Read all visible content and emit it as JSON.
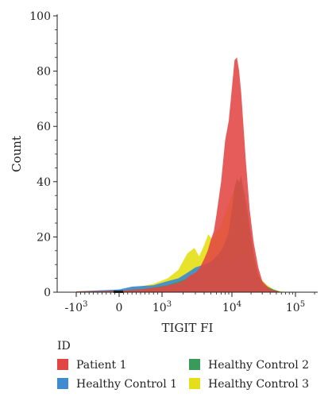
{
  "chart_data": {
    "type": "area",
    "xlabel": "TIGIT FI",
    "ylabel": "Count",
    "x_scale": "biexponential",
    "x_ticks": [
      {
        "value": -1000,
        "label": "-10",
        "exp": "3"
      },
      {
        "value": 0,
        "label": "0",
        "exp": ""
      },
      {
        "value": 1000,
        "label": "10",
        "exp": "3"
      },
      {
        "value": 10000,
        "label": "10",
        "exp": "4"
      },
      {
        "value": 100000,
        "label": "10",
        "exp": "5"
      }
    ],
    "y_ticks": [
      0,
      20,
      40,
      60,
      80,
      100
    ],
    "ylim": [
      0,
      100
    ],
    "legend": {
      "title": "ID",
      "position": "bottom"
    },
    "series": [
      {
        "name": "Healthy Control 3",
        "color": "#e5df1a",
        "points": [
          [
            -1000,
            0.3
          ],
          [
            0,
            0.6
          ],
          [
            300,
            1.5
          ],
          [
            800,
            3
          ],
          [
            1200,
            5
          ],
          [
            1700,
            8
          ],
          [
            2300,
            14
          ],
          [
            2900,
            16
          ],
          [
            3400,
            13
          ],
          [
            4000,
            17
          ],
          [
            4600,
            21
          ],
          [
            5200,
            19
          ],
          [
            6000,
            22
          ],
          [
            7000,
            24
          ],
          [
            8000,
            29
          ],
          [
            9000,
            32
          ],
          [
            10000,
            35
          ],
          [
            11000,
            37
          ],
          [
            12500,
            40
          ],
          [
            14000,
            37
          ],
          [
            16000,
            31
          ],
          [
            19000,
            21
          ],
          [
            23000,
            10
          ],
          [
            28000,
            5
          ],
          [
            34000,
            3
          ],
          [
            45000,
            1
          ],
          [
            60000,
            0.2
          ],
          [
            100000,
            0
          ],
          [
            200000,
            0
          ]
        ]
      },
      {
        "name": "Healthy Control 1",
        "color": "#3e8bd0",
        "points": [
          [
            -1000,
            0.3
          ],
          [
            0,
            1
          ],
          [
            300,
            2
          ],
          [
            800,
            2.5
          ],
          [
            1200,
            4
          ],
          [
            1700,
            5
          ],
          [
            2300,
            7
          ],
          [
            3000,
            9
          ],
          [
            4000,
            10
          ],
          [
            5000,
            11
          ],
          [
            6000,
            11
          ],
          [
            7000,
            11
          ],
          [
            8000,
            12
          ],
          [
            10000,
            12
          ],
          [
            12000,
            13
          ],
          [
            14000,
            14
          ],
          [
            16000,
            13
          ],
          [
            19000,
            10
          ],
          [
            23000,
            6
          ],
          [
            28000,
            3
          ],
          [
            35000,
            1.5
          ],
          [
            45000,
            0.5
          ],
          [
            60000,
            0
          ],
          [
            200000,
            0
          ]
        ]
      },
      {
        "name": "Healthy Control 2",
        "color": "#3a9a5b",
        "points": [
          [
            -1000,
            0.2
          ],
          [
            0,
            0.5
          ],
          [
            500,
            1
          ],
          [
            1200,
            2.5
          ],
          [
            2300,
            5
          ],
          [
            3000,
            7
          ],
          [
            4000,
            9
          ],
          [
            5000,
            11
          ],
          [
            6000,
            13
          ],
          [
            7000,
            15
          ],
          [
            8000,
            18
          ],
          [
            9000,
            22
          ],
          [
            10000,
            30
          ],
          [
            11000,
            38
          ],
          [
            12000,
            41
          ],
          [
            13000,
            40
          ],
          [
            14000,
            42
          ],
          [
            15000,
            38
          ],
          [
            17000,
            32
          ],
          [
            19000,
            24
          ],
          [
            22000,
            14
          ],
          [
            26000,
            6
          ],
          [
            32000,
            2.5
          ],
          [
            45000,
            1
          ],
          [
            60000,
            0
          ],
          [
            200000,
            0
          ]
        ]
      },
      {
        "name": "Patient 1",
        "color": "#e24644",
        "points": [
          [
            -1000,
            0.3
          ],
          [
            0,
            0.5
          ],
          [
            500,
            1
          ],
          [
            1000,
            2
          ],
          [
            1500,
            3
          ],
          [
            2000,
            4
          ],
          [
            2500,
            6
          ],
          [
            3000,
            7
          ],
          [
            3500,
            9
          ],
          [
            4000,
            12
          ],
          [
            4500,
            15
          ],
          [
            5000,
            19
          ],
          [
            5500,
            22
          ],
          [
            6000,
            28
          ],
          [
            7000,
            40
          ],
          [
            8000,
            55
          ],
          [
            9000,
            62
          ],
          [
            10000,
            74
          ],
          [
            11000,
            84
          ],
          [
            12000,
            85
          ],
          [
            13000,
            80
          ],
          [
            14000,
            72
          ],
          [
            15000,
            62
          ],
          [
            16500,
            48
          ],
          [
            19000,
            30
          ],
          [
            22000,
            18
          ],
          [
            26000,
            9
          ],
          [
            30000,
            4
          ],
          [
            40000,
            1
          ],
          [
            60000,
            0
          ],
          [
            200000,
            0
          ]
        ]
      }
    ],
    "legend_order": [
      "Patient 1",
      "Healthy Control 2",
      "Healthy Control 1",
      "Healthy Control 3"
    ]
  }
}
